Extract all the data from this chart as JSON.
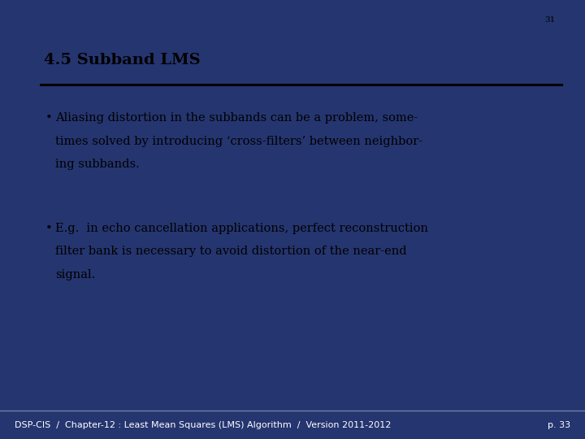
{
  "slide_number": "31",
  "page_number": "p. 33",
  "title": "4.5 Subband LMS",
  "footer_text": "DSP-CIS  /  Chapter-12 : Least Mean Squares (LMS) Algorithm  /  Version 2011-2012",
  "bullet1_lines": [
    "Aliasing distortion in the subbands can be a problem, some-",
    "times solved by introducing ‘cross-filters’ between neighbor-",
    "ing subbands."
  ],
  "bullet2_lines": [
    "E.g.  in echo cancellation applications, perfect reconstruction",
    "filter bank is necessary to avoid distortion of the near-end",
    "signal."
  ],
  "bg_slide": "#253570",
  "bg_white": "#ffffff",
  "bg_footer": "#2e3b6e",
  "title_color": "#000000",
  "body_color": "#000000",
  "footer_color": "#ffffff",
  "slide_num_color": "#000000",
  "title_fontsize": 14,
  "body_fontsize": 10.5,
  "footer_fontsize": 8,
  "slide_num_fontsize": 7.5,
  "page_num_fontsize": 8,
  "hr_color": "#000000",
  "footer_hr_color": "#7080aa"
}
